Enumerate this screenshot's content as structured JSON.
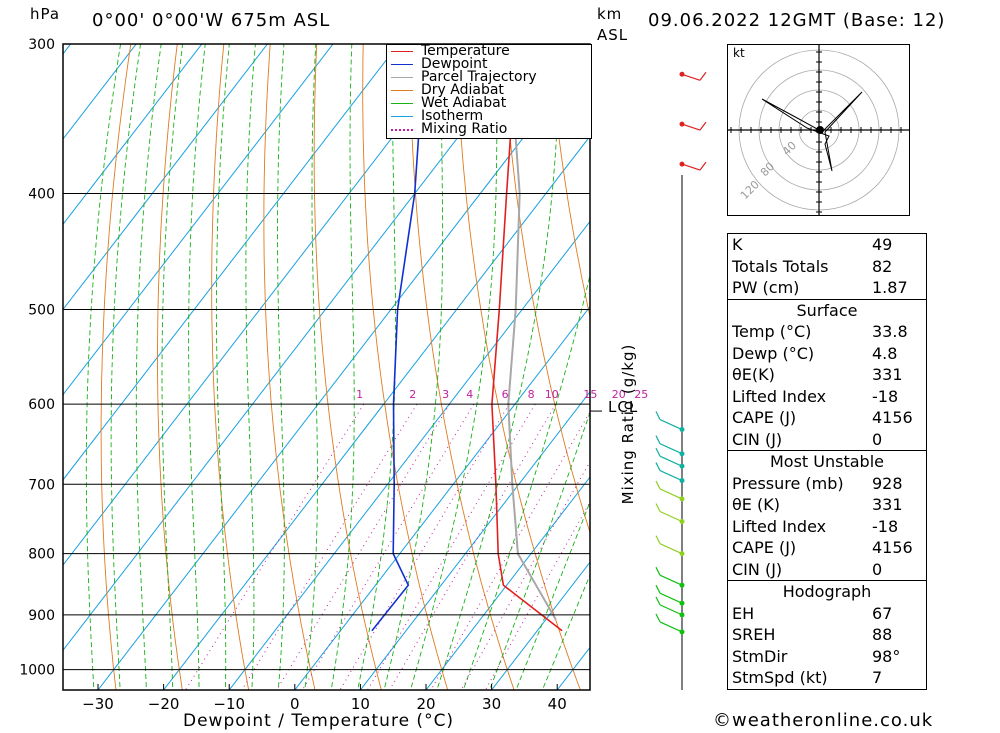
{
  "header": {
    "hpa_unit": "hPa",
    "location": "0°00' 0°00'W 675m ASL",
    "km_unit": "km",
    "asl_unit": "ASL",
    "datetime": "09.06.2022 12GMT (Base: 12)"
  },
  "chart_data": {
    "type": "skew-t log-p",
    "xlabel": "Dewpoint / Temperature (°C)",
    "ylabel": "hPa",
    "x_ticks": [
      -30,
      -20,
      -10,
      0,
      10,
      20,
      30,
      40
    ],
    "pressure_ticks": [
      300,
      400,
      500,
      600,
      700,
      800,
      900,
      1000
    ],
    "pressure_range": [
      300,
      1040
    ],
    "mixing_ratio_label": "Mixing Ratio (g/kg)",
    "mixing_ratio_values": [
      "1",
      "2",
      "3",
      "4",
      "6",
      "8",
      "10",
      "15",
      "20",
      "25"
    ],
    "lcl_label": "LCL",
    "lcl_pressure": 608,
    "legend": [
      "Temperature",
      "Dewpoint",
      "Parcel Trajectory",
      "Dry Adiabat",
      "Wet Adiabat",
      "Isotherm",
      "Mixing Ratio"
    ],
    "colors": {
      "temperature": "#e02020",
      "dewpoint": "#1030d0",
      "parcel": "#a8a8a8",
      "dry_adiabat": "#e07a20",
      "wet_adiabat": "#19b019",
      "isotherm": "#1aa0e0",
      "mixing_ratio": "#c020a0"
    },
    "temperature_profile": [
      {
        "p": 928,
        "t": 33.8
      },
      {
        "p": 850,
        "t": 19.5
      },
      {
        "p": 800,
        "t": 15.0
      },
      {
        "p": 700,
        "t": 6.5
      },
      {
        "p": 600,
        "t": -3.5
      },
      {
        "p": 500,
        "t": -13.5
      },
      {
        "p": 400,
        "t": -26.0
      },
      {
        "p": 300,
        "t": -42.0
      }
    ],
    "dewpoint_profile": [
      {
        "p": 928,
        "t": 4.8
      },
      {
        "p": 850,
        "t": 5.0
      },
      {
        "p": 800,
        "t": -1.0
      },
      {
        "p": 700,
        "t": -9.0
      },
      {
        "p": 600,
        "t": -18.5
      },
      {
        "p": 500,
        "t": -29.0
      },
      {
        "p": 400,
        "t": -40.0
      },
      {
        "p": 300,
        "t": -56.0
      }
    ],
    "parcel_profile": [
      {
        "p": 908,
        "t": 31.5
      },
      {
        "p": 800,
        "t": 18.0
      },
      {
        "p": 700,
        "t": 9.0
      },
      {
        "p": 600,
        "t": -1.0
      },
      {
        "p": 500,
        "t": -11.0
      },
      {
        "p": 400,
        "t": -24.0
      },
      {
        "p": 310,
        "t": -41.0
      }
    ]
  },
  "hodograph": {
    "unit": "kt",
    "ring_labels": [
      "40",
      "80",
      "120"
    ]
  },
  "indices": {
    "k": {
      "label": "K",
      "value": "49"
    },
    "tt": {
      "label": "Totals Totals",
      "value": "82"
    },
    "pw": {
      "label": "PW (cm)",
      "value": "1.87"
    },
    "surface_title": "Surface",
    "surface": [
      {
        "label": "Temp (°C)",
        "value": "33.8"
      },
      {
        "label": "Dewp (°C)",
        "value": "4.8"
      },
      {
        "label": "θE(K)",
        "value": "331"
      },
      {
        "label": "Lifted Index",
        "value": "-18"
      },
      {
        "label": "CAPE (J)",
        "value": "4156"
      },
      {
        "label": "CIN (J)",
        "value": "0"
      }
    ],
    "mu_title": "Most Unstable",
    "mu": [
      {
        "label": "Pressure (mb)",
        "value": "928"
      },
      {
        "label": "θE (K)",
        "value": "331"
      },
      {
        "label": "Lifted Index",
        "value": "-18"
      },
      {
        "label": "CAPE (J)",
        "value": "4156"
      },
      {
        "label": "CIN (J)",
        "value": "0"
      }
    ],
    "hodo_title": "Hodograph",
    "hodo": [
      {
        "label": "EH",
        "value": "67"
      },
      {
        "label": "SREH",
        "value": "88"
      },
      {
        "label": "StmDir",
        "value": "98°"
      },
      {
        "label": "StmSpd (kt)",
        "value": "7"
      }
    ]
  },
  "footer": {
    "credit": "©weatheronline.co.uk"
  }
}
